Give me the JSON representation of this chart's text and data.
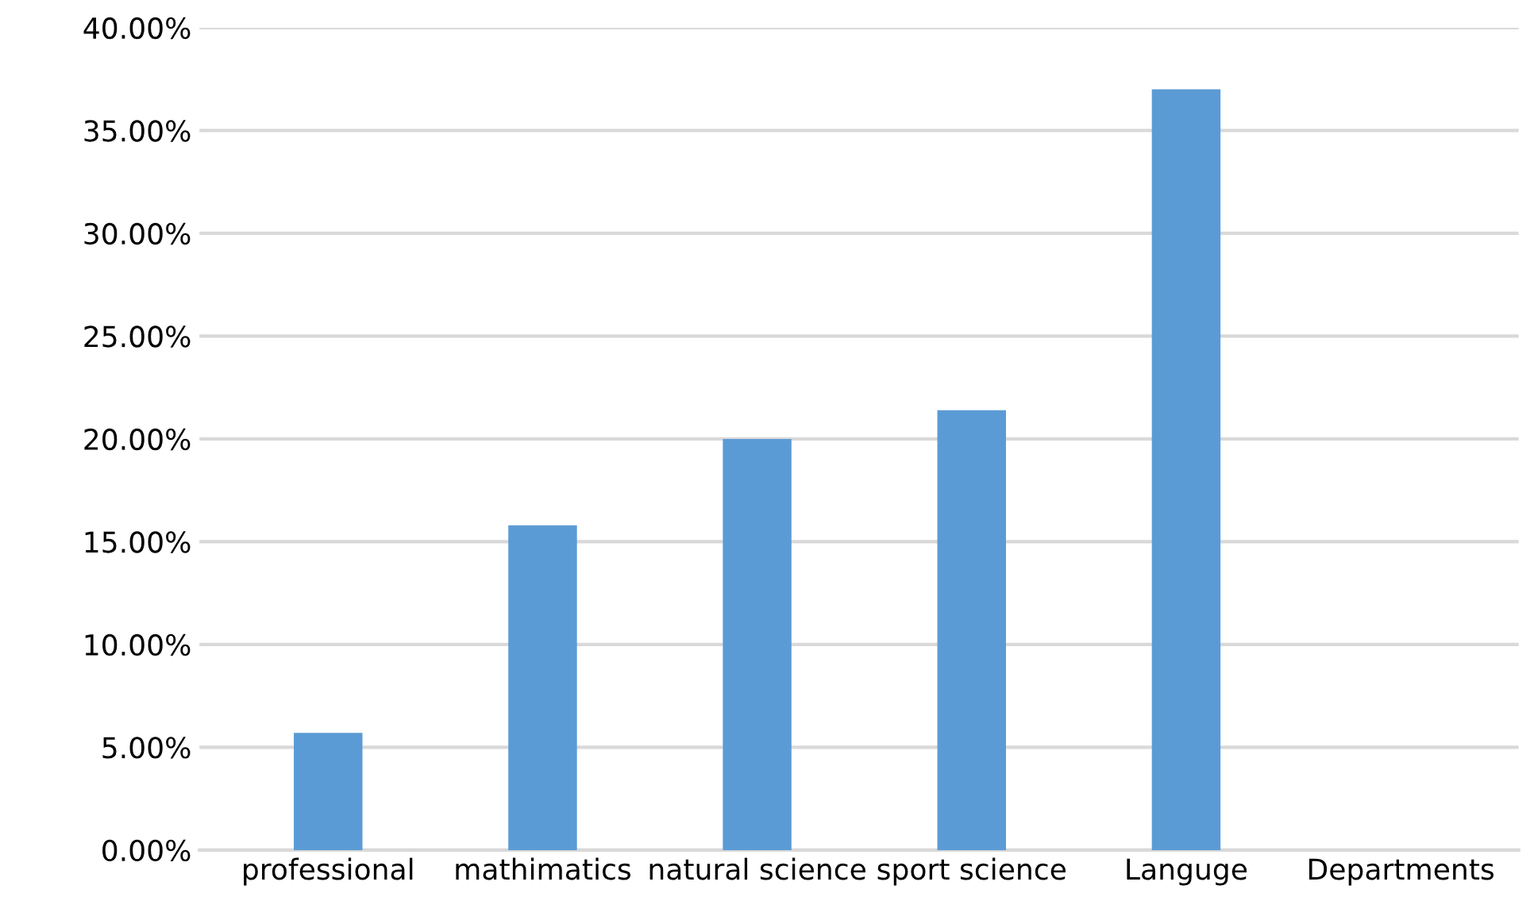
{
  "chart_data": {
    "type": "bar",
    "categories": [
      "professional",
      "mathimatics",
      "natural science",
      "sport science",
      "Languge",
      "Departments"
    ],
    "values": [
      5.7,
      15.8,
      20.0,
      21.4,
      37.0,
      null
    ],
    "color": "#5b9bd5",
    "ylim": [
      0,
      40
    ],
    "yticks": [
      {
        "value": 0,
        "label": "0.00%"
      },
      {
        "value": 5,
        "label": "5.00%"
      },
      {
        "value": 10,
        "label": "10.00%"
      },
      {
        "value": 15,
        "label": "15.00%"
      },
      {
        "value": 20,
        "label": "20.00%"
      },
      {
        "value": 25,
        "label": "25.00%"
      },
      {
        "value": 30,
        "label": "30.00%"
      },
      {
        "value": 35,
        "label": "35.00%"
      },
      {
        "value": 40,
        "label": "40.00%"
      }
    ],
    "grid": "y"
  }
}
